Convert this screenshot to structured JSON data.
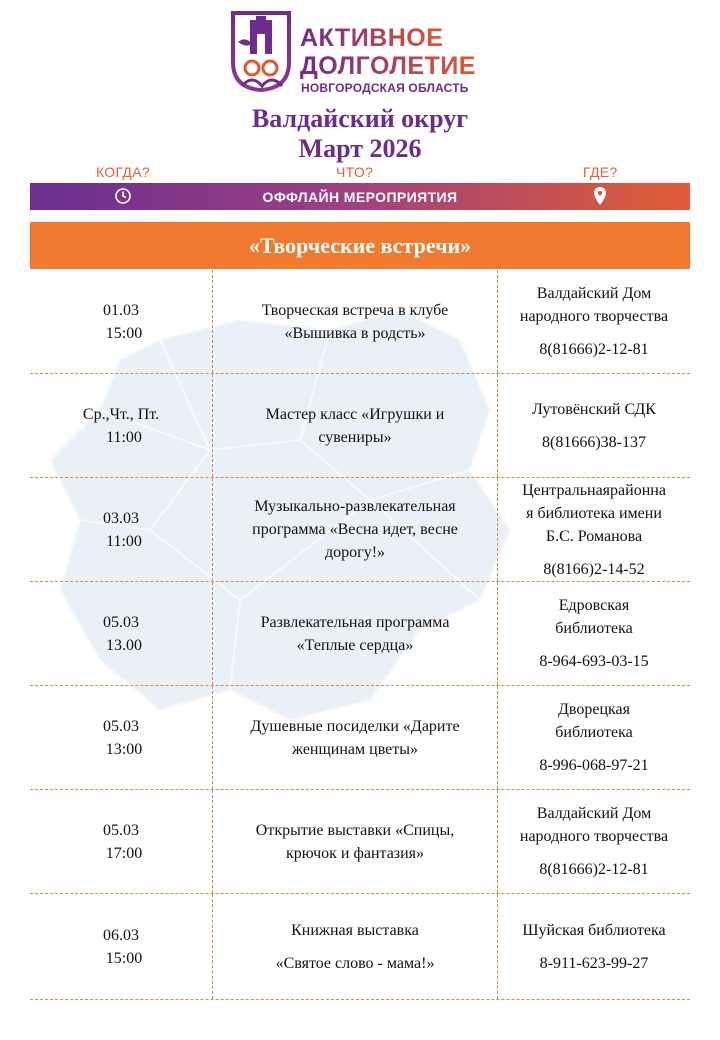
{
  "logo": {
    "line1": "АКТИВНОЕ",
    "line2": "ДОЛГОЛЕТИЕ",
    "line3": "НОВГОРОДСКАЯ ОБЛАСТЬ"
  },
  "title": {
    "district": "Валдайский округ",
    "month": "Март 2026"
  },
  "columns": {
    "when": "КОГДА?",
    "what": "ЧТО?",
    "where": "ГДЕ?"
  },
  "banner": {
    "label": "ОФФЛАЙН МЕРОПРИЯТИЯ",
    "left_icon": "clock-icon",
    "right_icon": "location-pin-icon"
  },
  "section": {
    "title": "«Творческие встречи»"
  },
  "colors": {
    "purple": "#6b2d8c",
    "orange": "#ef7a30",
    "divider": "#d9874f"
  },
  "events": [
    {
      "date": "01.03",
      "time": "15:00",
      "what": [
        "Творческая встреча в клубе",
        "«Вышивка в родсть»"
      ],
      "place": [
        "Валдайский Дом",
        "народного творчества"
      ],
      "phone": "8(81666)2-12-81"
    },
    {
      "date": "Ср.,Чт., Пт.",
      "time": "11:00",
      "what": [
        "Мастер класс «Игрушки и",
        "сувениры»"
      ],
      "place": [
        "Лутовёнский СДК"
      ],
      "phone": "8(81666)38-137"
    },
    {
      "date": "03.03",
      "time": "11:00",
      "what": [
        "Музыкально-развлекательная",
        "программа «Весна идет, весне",
        "дорогу!»"
      ],
      "place": [
        "Центральнаярайонна",
        "я библиотека имени",
        "Б.С. Романова"
      ],
      "phone": "8(8166)2-14-52"
    },
    {
      "date": "05.03",
      "time": "13.00",
      "what": [
        "Развлекательная программа",
        "«Теплые сердца»"
      ],
      "place": [
        "Едровская",
        "библиотека"
      ],
      "phone": "8-964-693-03-15"
    },
    {
      "date": "05.03",
      "time": "13:00",
      "what": [
        "Душевные посиделки «Дарите",
        "женщинам цветы»"
      ],
      "place": [
        "Дворецкая",
        "библиотека"
      ],
      "phone": "8-996-068-97-21"
    },
    {
      "date": "05.03",
      "time": "17:00",
      "what": [
        "Открытие выставки «Спицы,",
        "крючок и фантазия»"
      ],
      "place": [
        "Валдайский Дом",
        "народного творчества"
      ],
      "phone": "8(81666)2-12-81"
    },
    {
      "date": "06.03",
      "time": "15:00",
      "what": [
        "Книжная выставка",
        "«Святое слово - мама!»"
      ],
      "place": [
        "Шуйская библиотека"
      ],
      "phone": "8-911-623-99-27"
    }
  ]
}
